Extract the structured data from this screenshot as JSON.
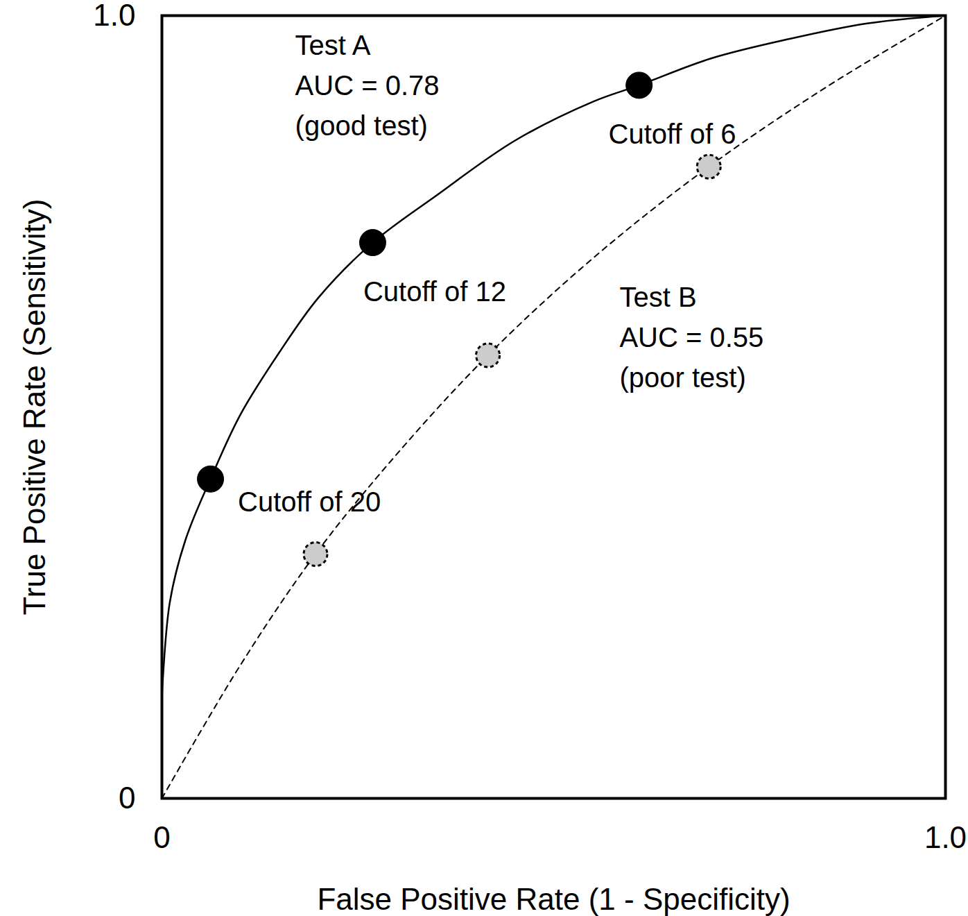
{
  "chart_data": {
    "type": "line",
    "x_label": "False Positive Rate (1 - Specificity)",
    "y_label": "True Positive Rate (Sensitivity)",
    "xlim": [
      0,
      1
    ],
    "ylim": [
      0,
      1
    ],
    "xticks": [
      0,
      {
        "value": 1,
        "label": "1.0"
      }
    ],
    "yticks": [
      0,
      {
        "value": 1,
        "label": "1.0"
      }
    ],
    "grid": false,
    "series": [
      {
        "type": "line",
        "color": "#000000",
        "line_style": "solid",
        "x": [
          0,
          0.01,
          0.03,
          0.062,
          0.1,
          0.15,
          0.2,
          0.269,
          0.35,
          0.45,
          0.55,
          0.609,
          0.7,
          0.8,
          0.9,
          1
        ],
        "values": [
          0.13,
          0.25,
          0.33,
          0.408,
          0.49,
          0.57,
          0.64,
          0.71,
          0.77,
          0.84,
          0.89,
          0.911,
          0.945,
          0.97,
          0.99,
          1
        ]
      },
      {
        "type": "line",
        "color": "#000000",
        "line_style": "dashed",
        "x": [
          0,
          0.1,
          0.196,
          0.3,
          0.416,
          0.55,
          0.698,
          0.85,
          1
        ],
        "values": [
          0,
          0.17,
          0.312,
          0.44,
          0.566,
          0.69,
          0.807,
          0.91,
          1
        ]
      },
      {
        "type": "scatter",
        "color": "#000000",
        "marker": "circle",
        "x": [
          0.062,
          0.269,
          0.609
        ],
        "values": [
          0.408,
          0.71,
          0.911
        ]
      },
      {
        "type": "scatter",
        "color": "#cccccc",
        "marker": "circle",
        "line_style": "dashed",
        "x": [
          0.196,
          0.416,
          0.698
        ],
        "values": [
          0.312,
          0.566,
          0.807
        ]
      }
    ],
    "annotations": [
      {
        "text": "Test A\nAUC = 0.78\n(good test)",
        "x": 0.17,
        "y": 0.986
      },
      {
        "text": "Test B\nAUC = 0.55\n(poor test)",
        "x": 0.584,
        "y": 0.665
      },
      {
        "text": "Cutoff of 6",
        "x": 0.57,
        "y": 0.873
      },
      {
        "text": "Cutoff of 12",
        "x": 0.257,
        "y": 0.672
      },
      {
        "text": "Cutoff of 20",
        "x": 0.097,
        "y": 0.403
      }
    ]
  }
}
